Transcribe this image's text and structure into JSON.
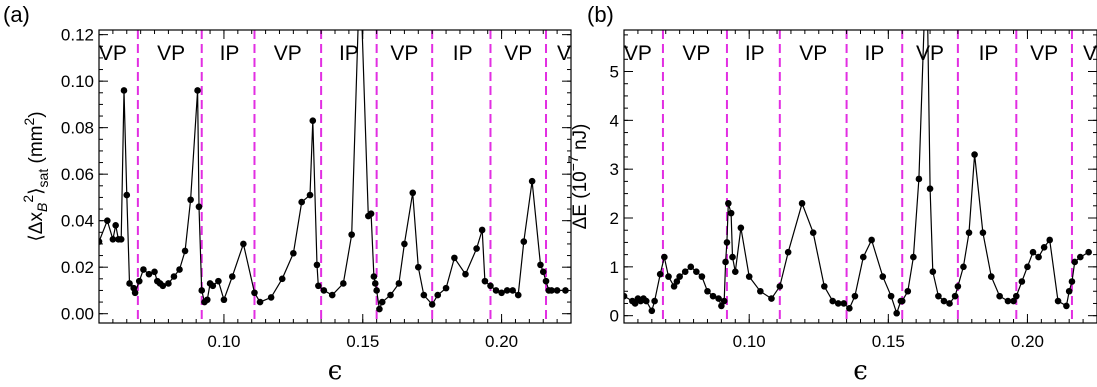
{
  "chart_data": [
    {
      "type": "line",
      "panel_label": "(a)",
      "xlabel": "ϵ",
      "ylabel_parts": [
        "⟨Δx",
        "B",
        "2",
        "⟩",
        "sat",
        " (mm",
        "2",
        ")"
      ],
      "xlim": [
        0.055,
        0.225
      ],
      "ylim": [
        -0.004,
        0.122
      ],
      "xticks": [
        0.1,
        0.15,
        0.2
      ],
      "xtick_labels": [
        "0.10",
        "0.15",
        "0.20"
      ],
      "yticks": [
        0.0,
        0.02,
        0.04,
        0.06,
        0.08,
        0.1,
        0.12
      ],
      "ytick_labels": [
        "0.00",
        "0.02",
        "0.04",
        "0.06",
        "0.08",
        "0.10",
        "0.12"
      ],
      "boundaries": [
        0.069,
        0.092,
        0.111,
        0.135,
        0.155,
        0.175,
        0.196,
        0.216
      ],
      "regions": [
        {
          "label": "VP",
          "x": 0.06,
          "color": "#ee1111"
        },
        {
          "label": "VP",
          "x": 0.081,
          "color": "#1111cc"
        },
        {
          "label": "IP",
          "x": 0.102,
          "color": "#ee1111"
        },
        {
          "label": "VP",
          "x": 0.123,
          "color": "#1111cc"
        },
        {
          "label": "IP",
          "x": 0.145,
          "color": "#ee1111"
        },
        {
          "label": "VP",
          "x": 0.165,
          "color": "#1111cc"
        },
        {
          "label": "IP",
          "x": 0.186,
          "color": "#ee1111"
        },
        {
          "label": "VP",
          "x": 0.206,
          "color": "#1111cc"
        },
        {
          "label": "V",
          "x": 0.2225,
          "color": "#ee1111"
        }
      ],
      "series": [
        {
          "x": [
            0.055,
            0.058,
            0.06,
            0.061,
            0.062,
            0.063,
            0.064,
            0.065,
            0.066,
            0.0675,
            0.068,
            0.0695,
            0.071,
            0.073,
            0.075,
            0.076,
            0.077,
            0.078,
            0.08,
            0.082,
            0.084,
            0.086,
            0.088,
            0.0905,
            0.091,
            0.092,
            0.093,
            0.094,
            0.095,
            0.096,
            0.098,
            0.1,
            0.103,
            0.107,
            0.111,
            0.113,
            0.117,
            0.121,
            0.125,
            0.128,
            0.131,
            0.132,
            0.1335,
            0.134,
            0.136,
            0.139,
            0.143,
            0.146,
            0.149,
            0.152,
            0.153,
            0.154,
            0.1545,
            0.155,
            0.156,
            0.157,
            0.16,
            0.163,
            0.165,
            0.168,
            0.17,
            0.172,
            0.175,
            0.177,
            0.18,
            0.183,
            0.187,
            0.191,
            0.193,
            0.194,
            0.196,
            0.198,
            0.2,
            0.202,
            0.204,
            0.206,
            0.208,
            0.211,
            0.214,
            0.215,
            0.216,
            0.217,
            0.218,
            0.22,
            0.223
          ],
          "y": [
            0.031,
            0.04,
            0.032,
            0.038,
            0.032,
            0.032,
            0.096,
            0.051,
            0.013,
            0.011,
            0.009,
            0.014,
            0.019,
            0.017,
            0.018,
            0.014,
            0.013,
            0.012,
            0.013,
            0.016,
            0.019,
            0.027,
            0.049,
            0.096,
            0.046,
            0.01,
            0.005,
            0.006,
            0.013,
            0.012,
            0.014,
            0.006,
            0.016,
            0.03,
            0.009,
            0.005,
            0.007,
            0.015,
            0.026,
            0.048,
            0.051,
            0.083,
            0.021,
            0.012,
            0.01,
            0.008,
            0.013,
            0.034,
            0.15,
            0.042,
            0.043,
            0.016,
            0.013,
            0.01,
            0.002,
            0.005,
            0.008,
            0.013,
            0.03,
            0.052,
            0.02,
            0.008,
            0.004,
            0.008,
            0.011,
            0.024,
            0.017,
            0.028,
            0.036,
            0.014,
            0.012,
            0.01,
            0.009,
            0.01,
            0.01,
            0.008,
            0.031,
            0.057,
            0.021,
            0.018,
            0.014,
            0.01,
            0.01,
            0.01,
            0.01
          ]
        }
      ]
    },
    {
      "type": "line",
      "panel_label": "(b)",
      "xlabel": "ϵ",
      "ylabel_parts": [
        "ΔE (10",
        "−7",
        " nJ)"
      ],
      "xlim": [
        0.055,
        0.225
      ],
      "ylim": [
        -0.15,
        5.85
      ],
      "xticks": [
        0.1,
        0.15,
        0.2
      ],
      "xtick_labels": [
        "0.10",
        "0.15",
        "0.20"
      ],
      "yticks": [
        0,
        1,
        2,
        3,
        4,
        5
      ],
      "ytick_labels": [
        "0",
        "1",
        "2",
        "3",
        "4",
        "5"
      ],
      "boundaries": [
        0.069,
        0.092,
        0.111,
        0.135,
        0.155,
        0.175,
        0.196,
        0.216
      ],
      "regions": [
        {
          "label": "VP",
          "x": 0.06,
          "color": "#ee1111"
        },
        {
          "label": "VP",
          "x": 0.081,
          "color": "#1111cc"
        },
        {
          "label": "IP",
          "x": 0.102,
          "color": "#ee1111"
        },
        {
          "label": "VP",
          "x": 0.123,
          "color": "#1111cc"
        },
        {
          "label": "IP",
          "x": 0.145,
          "color": "#ee1111"
        },
        {
          "label": "VP",
          "x": 0.165,
          "color": "#1111cc"
        },
        {
          "label": "IP",
          "x": 0.186,
          "color": "#ee1111"
        },
        {
          "label": "VP",
          "x": 0.206,
          "color": "#1111cc"
        },
        {
          "label": "V",
          "x": 0.2225,
          "color": "#ee1111"
        }
      ],
      "series": [
        {
          "x": [
            0.055,
            0.058,
            0.059,
            0.06,
            0.061,
            0.062,
            0.063,
            0.065,
            0.066,
            0.068,
            0.0695,
            0.071,
            0.073,
            0.074,
            0.075,
            0.077,
            0.079,
            0.081,
            0.083,
            0.085,
            0.087,
            0.089,
            0.09,
            0.091,
            0.0915,
            0.092,
            0.0925,
            0.0935,
            0.094,
            0.095,
            0.097,
            0.1,
            0.104,
            0.108,
            0.111,
            0.114,
            0.119,
            0.123,
            0.127,
            0.13,
            0.132,
            0.134,
            0.136,
            0.138,
            0.141,
            0.144,
            0.148,
            0.151,
            0.153,
            0.1545,
            0.155,
            0.157,
            0.159,
            0.161,
            0.163,
            0.164,
            0.165,
            0.166,
            0.168,
            0.17,
            0.172,
            0.174,
            0.175,
            0.177,
            0.179,
            0.181,
            0.184,
            0.187,
            0.19,
            0.193,
            0.195,
            0.196,
            0.198,
            0.2,
            0.202,
            0.204,
            0.206,
            0.208,
            0.211,
            0.214,
            0.215,
            0.216,
            0.217,
            0.219,
            0.222
          ],
          "y": [
            0.4,
            0.3,
            0.25,
            0.35,
            0.3,
            0.35,
            0.3,
            0.1,
            0.3,
            0.85,
            1.2,
            0.8,
            0.6,
            0.7,
            0.8,
            0.9,
            1.0,
            0.9,
            0.8,
            0.5,
            0.4,
            0.35,
            0.2,
            0.3,
            1.1,
            1.5,
            2.3,
            2.1,
            1.2,
            0.9,
            1.8,
            0.8,
            0.5,
            0.35,
            0.6,
            1.3,
            2.3,
            1.7,
            0.6,
            0.3,
            0.25,
            0.25,
            0.15,
            0.4,
            1.2,
            1.55,
            0.8,
            0.4,
            0.05,
            0.3,
            0.3,
            0.5,
            1.2,
            2.8,
            6.2,
            6.5,
            2.6,
            0.9,
            0.4,
            0.3,
            0.25,
            0.4,
            0.6,
            1.0,
            1.7,
            3.3,
            1.7,
            0.8,
            0.4,
            0.3,
            0.3,
            0.4,
            0.7,
            1.0,
            1.3,
            1.2,
            1.4,
            1.55,
            0.3,
            0.2,
            0.5,
            0.7,
            1.1,
            1.2,
            1.3
          ]
        }
      ]
    }
  ]
}
